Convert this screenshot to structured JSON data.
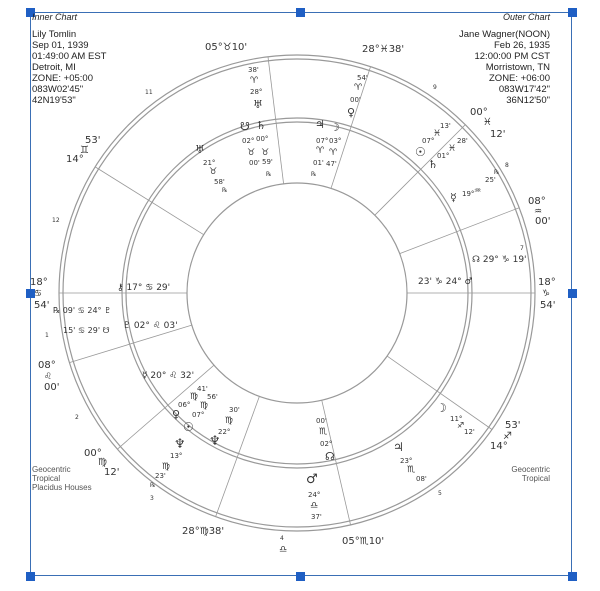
{
  "inner_chart": {
    "title": "Inner Chart",
    "lines": [
      "Lily Tomlin",
      "Sep 01, 1939",
      "01:49:00 AM EST",
      "Detroit, MI",
      "ZONE: +05:00",
      "083W02'45\"",
      "42N19'53\""
    ],
    "footer": [
      "Geocentric",
      "Tropical",
      "Placidus Houses"
    ]
  },
  "outer_chart": {
    "title": "Outer Chart",
    "lines": [
      "Jane Wagner(NOON)",
      "Feb 26, 1935",
      "12:00:00 PM CST",
      "Morristown, TN",
      "ZONE: +06:00",
      "083W17'42\"",
      "36N12'50\""
    ],
    "footer": [
      "Geocentric",
      "Tropical"
    ]
  },
  "wheel": {
    "cusp_labels": [
      "05°♉10'",
      "28°♓38'",
      "00°",
      "♓",
      "12'",
      "08°",
      "♒",
      "00'",
      "18°",
      "♑",
      "54'",
      "53'",
      "♐",
      "14°",
      "05°♏10'",
      "28°♍38'",
      "00°",
      "♍",
      "12'",
      "08°",
      "♌",
      "00'",
      "18°",
      "♋",
      "54'",
      "53'",
      "♊",
      "14°"
    ],
    "house_numbers": [
      "11",
      "9",
      "8",
      "7",
      "12",
      "1",
      "2",
      "3",
      "4",
      "5"
    ],
    "planet_labels": [
      "38'",
      "♈",
      "28°",
      "♅",
      "54'",
      "♈",
      "00'",
      "♀",
      "♅",
      "21°",
      "♉",
      "58'",
      "℞",
      "☋",
      "♄",
      "02°",
      "00°",
      "♉",
      "♉",
      "00'",
      "59'",
      "℞",
      "♃",
      "☽",
      "07°",
      "03°",
      "♈",
      "♈",
      "01'",
      "47'",
      "℞",
      "13'",
      "♓",
      "07°",
      "☉",
      "♓",
      "28'",
      "01°",
      "♄",
      "☿",
      "19°",
      "♒",
      "25'",
      "℞",
      "☊ 29° ♑ 19'",
      "23' ♑ 24° ♂",
      "⚷ 17° ♋ 29'",
      "℞ 09' ♋ 24° ♇",
      "15' ♋ 29' ☋",
      "♇ 02° ♌ 03'",
      "☿ 20° ♌ 32'",
      "41'",
      "♍",
      "56'",
      "06°",
      "♍",
      "♀",
      "07°",
      "☉",
      "30'",
      "♍",
      "22°",
      "♆",
      "♆",
      "13°",
      "♍",
      "23'",
      "℞",
      "00'",
      "♏",
      "02°",
      "☊",
      "♂",
      "24°",
      "♎",
      "37'",
      "☽",
      "11°",
      "♐",
      "12'",
      "♃",
      "23°",
      "♏",
      "08'",
      "♎"
    ]
  },
  "colors": {
    "selection": "#1f5fc4",
    "lines": "#888888"
  }
}
